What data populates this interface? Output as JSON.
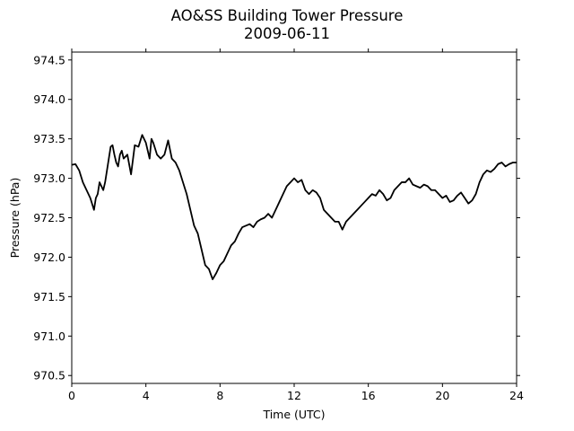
{
  "chart_data": {
    "type": "line",
    "title": "AO&SS Building Tower Pressure",
    "subtitle": "2009-06-11",
    "xlabel": "Time (UTC)",
    "ylabel": "Pressure (hPa)",
    "xlim": [
      0,
      24
    ],
    "ylim": [
      970.4,
      974.6
    ],
    "xticks": [
      0,
      4,
      8,
      12,
      16,
      20,
      24
    ],
    "yticks": [
      970.5,
      971.0,
      971.5,
      972.0,
      972.5,
      973.0,
      973.5,
      974.0,
      974.5
    ],
    "grid": false,
    "line_color": "#000000",
    "series": [
      {
        "x": [
          0.0,
          0.2,
          0.4,
          0.6,
          0.8,
          1.0,
          1.2,
          1.3,
          1.4,
          1.5,
          1.6,
          1.7,
          1.8,
          2.0,
          2.1,
          2.2,
          2.3,
          2.4,
          2.5,
          2.6,
          2.7,
          2.8,
          3.0,
          3.2,
          3.4,
          3.6,
          3.8,
          4.0,
          4.1,
          4.2,
          4.3,
          4.4,
          4.6,
          4.8,
          5.0,
          5.2,
          5.4,
          5.6,
          5.8,
          6.0,
          6.2,
          6.4,
          6.6,
          6.8,
          7.0,
          7.2,
          7.4,
          7.6,
          7.8,
          8.0,
          8.2,
          8.4,
          8.6,
          8.8,
          9.0,
          9.2,
          9.4,
          9.6,
          9.8,
          10.0,
          10.2,
          10.4,
          10.6,
          10.8,
          11.0,
          11.2,
          11.4,
          11.6,
          11.8,
          12.0,
          12.2,
          12.4,
          12.6,
          12.8,
          13.0,
          13.2,
          13.4,
          13.6,
          13.8,
          14.0,
          14.2,
          14.4,
          14.6,
          14.8,
          15.0,
          15.2,
          15.4,
          15.6,
          15.8,
          16.0,
          16.2,
          16.4,
          16.6,
          16.8,
          17.0,
          17.2,
          17.4,
          17.6,
          17.8,
          18.0,
          18.2,
          18.4,
          18.6,
          18.8,
          19.0,
          19.2,
          19.4,
          19.6,
          19.8,
          20.0,
          20.2,
          20.4,
          20.6,
          20.8,
          21.0,
          21.2,
          21.4,
          21.6,
          21.8,
          22.0,
          22.2,
          22.4,
          22.6,
          22.8,
          23.0,
          23.2,
          23.4,
          23.6,
          23.8,
          24.0
        ],
        "y": [
          973.17,
          973.18,
          973.1,
          972.95,
          972.85,
          972.75,
          972.6,
          972.75,
          972.8,
          972.95,
          972.9,
          972.85,
          972.95,
          973.25,
          973.4,
          973.42,
          973.3,
          973.2,
          973.15,
          973.3,
          973.35,
          973.25,
          973.3,
          973.05,
          973.42,
          973.4,
          973.55,
          973.45,
          973.35,
          973.25,
          973.5,
          973.45,
          973.3,
          973.25,
          973.3,
          973.48,
          973.25,
          973.2,
          973.1,
          972.95,
          972.8,
          972.6,
          972.4,
          972.3,
          972.1,
          971.9,
          971.85,
          971.72,
          971.8,
          971.9,
          971.95,
          972.05,
          972.15,
          972.2,
          972.3,
          972.38,
          972.4,
          972.42,
          972.38,
          972.45,
          972.48,
          972.5,
          972.55,
          972.5,
          972.6,
          972.7,
          972.8,
          972.9,
          972.95,
          973.0,
          972.95,
          972.98,
          972.85,
          972.8,
          972.85,
          972.82,
          972.75,
          972.6,
          972.55,
          972.5,
          972.45,
          972.45,
          972.35,
          972.45,
          972.5,
          972.55,
          972.6,
          972.65,
          972.7,
          972.75,
          972.8,
          972.78,
          972.85,
          972.8,
          972.72,
          972.75,
          972.85,
          972.9,
          972.95,
          972.95,
          973.0,
          972.92,
          972.9,
          972.88,
          972.92,
          972.9,
          972.85,
          972.85,
          972.8,
          972.75,
          972.78,
          972.7,
          972.72,
          972.78,
          972.82,
          972.75,
          972.68,
          972.72,
          972.8,
          972.95,
          973.05,
          973.1,
          973.08,
          973.12,
          973.18,
          973.2,
          973.15,
          973.18,
          973.2,
          973.2
        ]
      }
    ]
  }
}
